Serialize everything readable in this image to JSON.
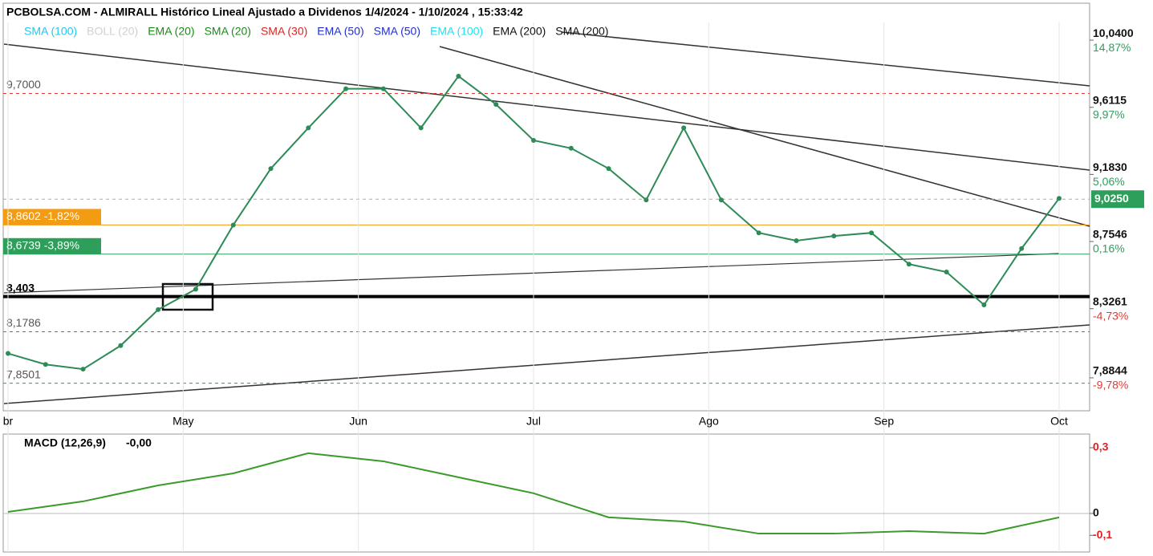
{
  "chart_data": [
    {
      "type": "line",
      "title": "PCBOLSA.COM - ALMIRALL Histórico Lineal Ajustado a Dividenos 1/4/2024 - 1/10/2024 , 15:33:42",
      "legend": [
        {
          "name": "SMA (100)",
          "color": "#22c7f0"
        },
        {
          "name": "BOLL (20)",
          "color": "#d0d0d0"
        },
        {
          "name": "EMA (20)",
          "color": "#1a8a1a"
        },
        {
          "name": "SMA (20)",
          "color": "#1a8a1a"
        },
        {
          "name": "SMA (30)",
          "color": "#e02020"
        },
        {
          "name": "EMA (50)",
          "color": "#2030d0"
        },
        {
          "name": "SMA (50)",
          "color": "#2030d0"
        },
        {
          "name": "EMA (100)",
          "color": "#22e0f0"
        },
        {
          "name": "EMA (200)",
          "color": "#111111"
        },
        {
          "name": "SMA (200)",
          "color": "#111111"
        }
      ],
      "months": [
        "br",
        "May",
        "Jun",
        "Jul",
        "Ago",
        "Sep",
        "Oct"
      ],
      "series": [
        {
          "name": "ALMIRALL",
          "color": "#2e8b57",
          "values": [
            8.04,
            7.97,
            7.94,
            8.09,
            8.32,
            8.45,
            8.86,
            9.22,
            9.48,
            9.73,
            9.73,
            9.48,
            9.81,
            9.63,
            9.4,
            9.35,
            9.22,
            9.02,
            9.48,
            9.02,
            8.81,
            8.76,
            8.79,
            8.81,
            8.61,
            8.56,
            8.35,
            8.71,
            9.03
          ]
        }
      ],
      "ylim": [
        7.674,
        10.153
      ],
      "yticks": [
        {
          "value": 10.04,
          "label": "10,0400"
        },
        {
          "value": 9.6115,
          "label": "9,6115"
        },
        {
          "value": 9.183,
          "label": "9,1830"
        },
        {
          "value": 8.7546,
          "label": "8,7546"
        },
        {
          "value": 8.3261,
          "label": "8,3261"
        },
        {
          "value": 7.8844,
          "label": "7,8844"
        }
      ],
      "ytick_changes": [
        "14,87%",
        "9,97%",
        "5,06%",
        "0,16%",
        "-4,73%",
        "-9,78%"
      ],
      "last": {
        "value": 9.025,
        "label": "9,0250",
        "color": "#2e9e5b"
      },
      "levels": [
        {
          "value": 9.7,
          "label": "9,7000",
          "color": "#e53935",
          "style": "plain"
        },
        {
          "value": 8.8602,
          "label": "8,8602 -1,82%",
          "color": "#f39c12",
          "style": "box"
        },
        {
          "value": 8.6739,
          "label": "8,6739 -3,89%",
          "color": "#2e9e5b",
          "style": "box"
        },
        {
          "value": 8.403,
          "label": "8,403",
          "color": "#000000",
          "style": "bold"
        },
        {
          "value": 8.1786,
          "label": "8,1786",
          "color": "#2e9e5b",
          "style": "plain"
        },
        {
          "value": 7.8501,
          "label": "7,8501",
          "color": "#2e9e5b",
          "style": "plain"
        }
      ]
    },
    {
      "type": "line",
      "title": "MACD (12,26,9)",
      "subtitle": "-0,00",
      "series": [
        {
          "name": "MACD",
          "color": "#3a9a2a",
          "values": [
            0.007,
            0.055,
            0.128,
            0.183,
            0.275,
            0.238,
            0.165,
            0.092,
            -0.018,
            -0.037,
            -0.092,
            -0.092,
            -0.081,
            -0.092,
            -0.018
          ]
        }
      ],
      "ylim": [
        -0.176,
        0.355
      ],
      "yticks": [
        {
          "value": 0.3,
          "label": "0,3"
        },
        0,
        {
          "value": -0.1,
          "label": "-0,1"
        }
      ]
    }
  ]
}
